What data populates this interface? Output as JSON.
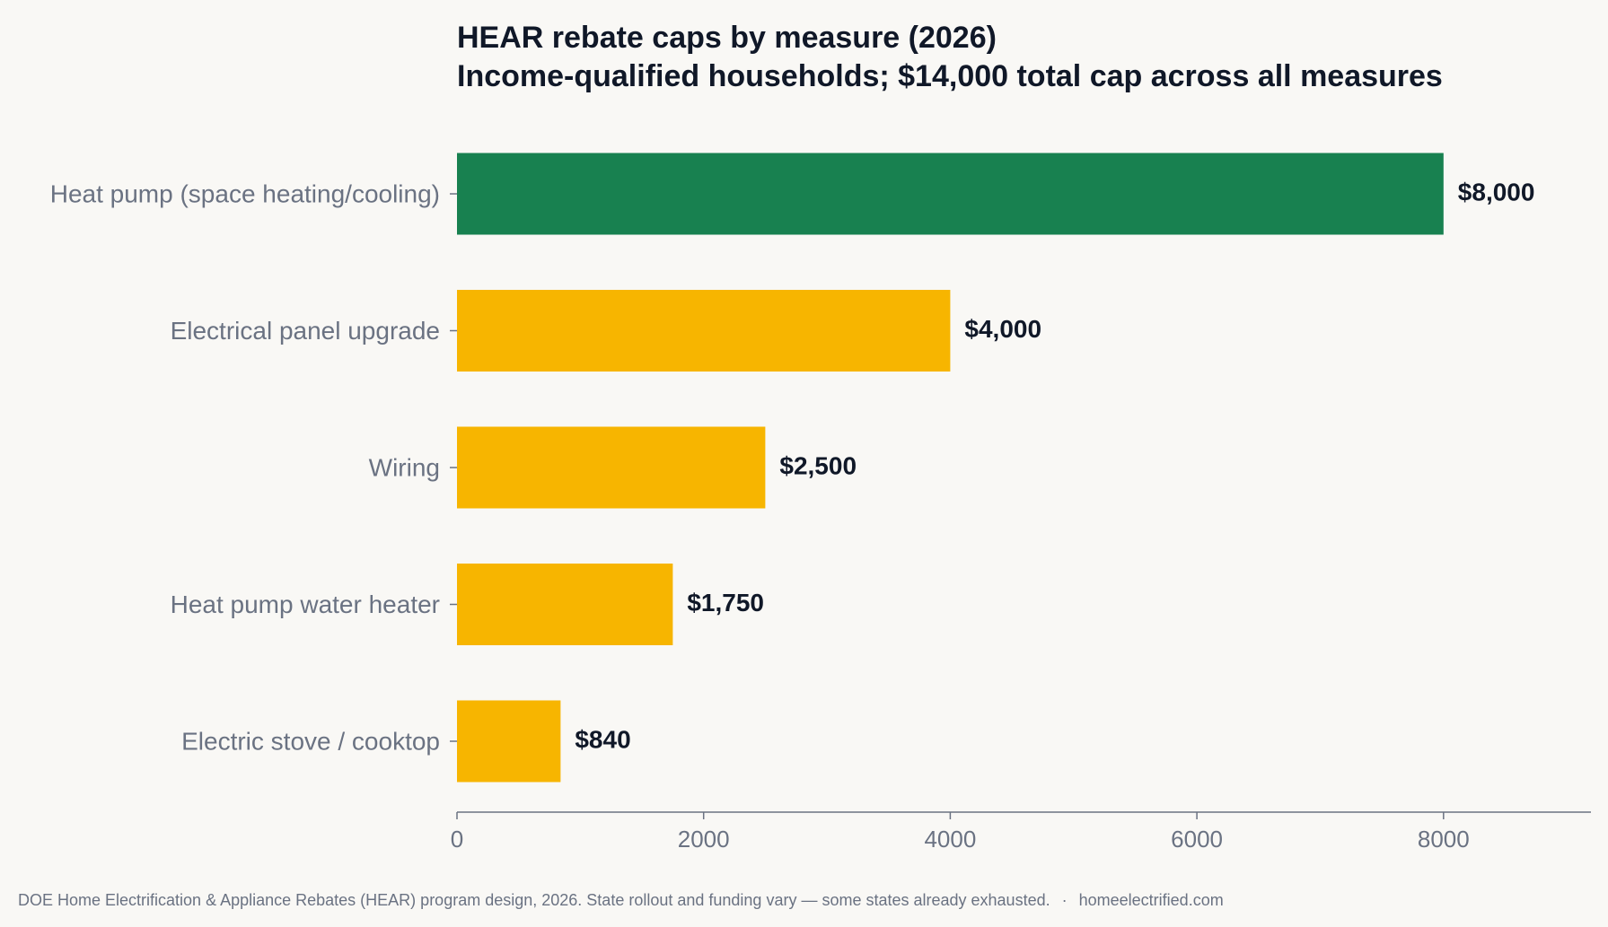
{
  "chart_data": {
    "type": "bar",
    "orientation": "horizontal",
    "title": "HEAR rebate caps by measure (2026)",
    "subtitle": "Income-qualified households; $14,000 total cap across all measures",
    "categories": [
      "Heat pump (space heating/cooling)",
      "Electrical panel upgrade",
      "Wiring",
      "Heat pump water heater",
      "Electric stove / cooktop"
    ],
    "values": [
      8000,
      4000,
      2500,
      1750,
      840
    ],
    "value_labels": [
      "$8,000",
      "$4,000",
      "$2,500",
      "$1,750",
      "$840"
    ],
    "highlight_index": 0,
    "xlim": [
      0,
      9200
    ],
    "xticks": [
      0,
      2000,
      4000,
      6000,
      8000
    ],
    "xlabel": "",
    "ylabel": "",
    "grid": false,
    "legend": "none"
  },
  "colors": {
    "highlight": "#188150",
    "default": "#f7b500",
    "background": "#f9f8f5",
    "axis": "#6a7282",
    "title": "#101828",
    "label": "#6a7282"
  },
  "footer": {
    "source": "DOE Home Electrification & Appliance Rebates (HEAR) program design, 2026. State rollout and funding vary — some states already exhausted.",
    "separator": "·",
    "site": "homeelectrified.com"
  }
}
